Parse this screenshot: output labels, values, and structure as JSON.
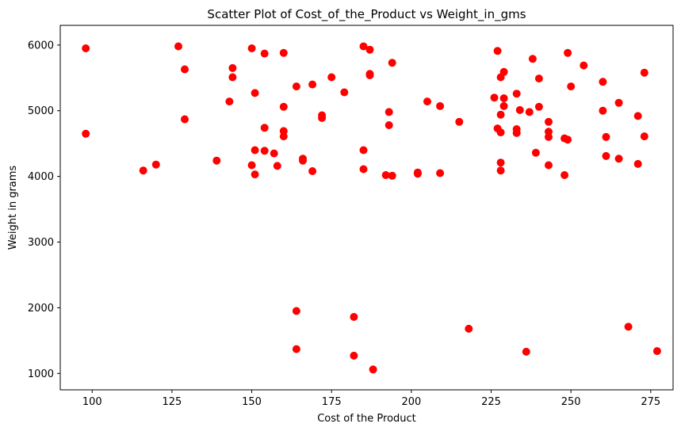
{
  "chart_data": {
    "type": "scatter",
    "title": "Scatter Plot of Cost_of_the_Product vs Weight_in_gms",
    "xlabel": "Cost of the Product",
    "ylabel": "Weight in grams",
    "xlim": [
      90,
      282
    ],
    "ylim": [
      750,
      6300
    ],
    "x_ticks": [
      100,
      125,
      150,
      175,
      200,
      225,
      250,
      275
    ],
    "x_tick_labels": [
      "100",
      "125",
      "150",
      "175",
      "200",
      "225",
      "250",
      "275"
    ],
    "y_ticks": [
      1000,
      2000,
      3000,
      4000,
      5000,
      6000
    ],
    "y_tick_labels": [
      "1000",
      "2000",
      "3000",
      "4000",
      "5000",
      "6000"
    ],
    "grid": false,
    "marker_color": "#ff0000",
    "series": [
      {
        "x": [
          98,
          98,
          116,
          120,
          127,
          129,
          129,
          139,
          143,
          144,
          144,
          150,
          150,
          151,
          151,
          151,
          154,
          154,
          154,
          157,
          158,
          160,
          160,
          160,
          160,
          164,
          164,
          164,
          166,
          166,
          169,
          169,
          172,
          172,
          175,
          179,
          182,
          182,
          185,
          185,
          185,
          187,
          187,
          187,
          188,
          192,
          193,
          193,
          194,
          194,
          202,
          202,
          205,
          209,
          209,
          215,
          218,
          226,
          227,
          227,
          228,
          228,
          228,
          228,
          228,
          229,
          229,
          229,
          233,
          233,
          233,
          234,
          236,
          237,
          238,
          239,
          240,
          240,
          243,
          243,
          243,
          243,
          248,
          248,
          249,
          249,
          250,
          254,
          260,
          260,
          261,
          261,
          265,
          265,
          268,
          271,
          271,
          273,
          273,
          277
        ],
        "y": [
          5950,
          4650,
          4090,
          4180,
          5980,
          5630,
          4870,
          4240,
          5140,
          5650,
          5510,
          5950,
          4170,
          5270,
          4400,
          4030,
          5870,
          4740,
          4390,
          4350,
          4160,
          5880,
          5060,
          4690,
          4610,
          5370,
          1950,
          1370,
          4270,
          4240,
          5400,
          4080,
          4930,
          4890,
          5510,
          5280,
          1860,
          1270,
          5980,
          4400,
          4110,
          5930,
          5560,
          5540,
          1060,
          4020,
          4980,
          4780,
          5730,
          4010,
          4060,
          4040,
          5140,
          5070,
          4050,
          4830,
          1680,
          5200,
          5910,
          4730,
          5510,
          4940,
          4670,
          4210,
          4090,
          5590,
          5190,
          5070,
          5260,
          4720,
          4660,
          5010,
          1330,
          4980,
          5790,
          4360,
          5490,
          5060,
          4830,
          4680,
          4600,
          4170,
          4580,
          4020,
          5880,
          4560,
          5370,
          5690,
          5440,
          5000,
          4600,
          4310,
          5120,
          4270,
          1710,
          4920,
          4190,
          5580,
          4610,
          1340
        ]
      }
    ]
  }
}
